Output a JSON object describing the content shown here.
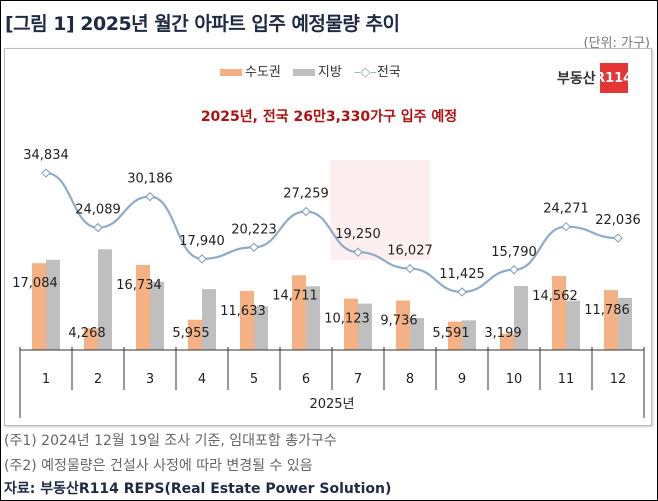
{
  "title": "[그림 1] 2025년 월간 아파트 입주 예정물량 추이",
  "unit": "(단위: 가구)",
  "headline": "2025년, 전국 26만3,330가구 입주 예정",
  "logo": {
    "text": "부동산",
    "badge": "R114"
  },
  "notes": [
    "(주1) 2024년 12월 19일 조사 기준, 임대포함 총가구수",
    "(주2) 예정물량은 건설사 사정에 따라 변경될 수 있음"
  ],
  "source": "자료: 부동산R114 REPS(Real Estate Power Solution)",
  "chart_data": {
    "type": "bar",
    "xlabel": "2025년",
    "categories": [
      "1",
      "2",
      "3",
      "4",
      "5",
      "6",
      "7",
      "8",
      "9",
      "10",
      "11",
      "12"
    ],
    "series": [
      {
        "name": "수도권",
        "type": "bar",
        "color": "#f4b183",
        "values": [
          17084,
          4268,
          16734,
          5955,
          11633,
          14711,
          10123,
          9736,
          5591,
          3199,
          14562,
          11786
        ]
      },
      {
        "name": "지방",
        "type": "bar",
        "color": "#bfbfbf",
        "values": [
          17750,
          19821,
          13452,
          11985,
          8590,
          12548,
          9127,
          6291,
          5834,
          12591,
          9709,
          10250
        ]
      },
      {
        "name": "전국",
        "type": "line",
        "color": "#8eacc8",
        "values": [
          34834,
          24089,
          30186,
          17940,
          20223,
          27259,
          19250,
          16027,
          11425,
          15790,
          24271,
          22036
        ]
      }
    ],
    "ylim": [
      0,
      36000
    ],
    "grid": false,
    "legend": "top"
  }
}
